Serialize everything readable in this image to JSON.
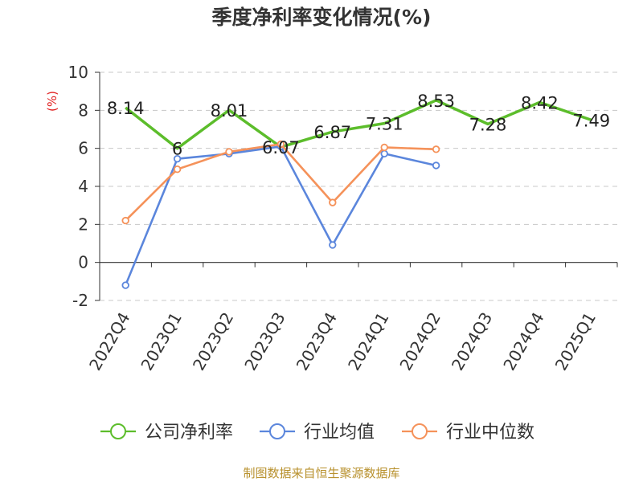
{
  "chart_data": {
    "type": "line",
    "title": "季度净利率变化情况(%)",
    "ylabel": "(%)",
    "ylim": [
      -2,
      10
    ],
    "yticks": [
      -2,
      0,
      2,
      4,
      6,
      8,
      10
    ],
    "grid": true,
    "categories": [
      "2022Q4",
      "2023Q1",
      "2023Q2",
      "2023Q3",
      "2023Q4",
      "2024Q1",
      "2024Q2",
      "2024Q3",
      "2024Q4",
      "2025Q1"
    ],
    "series": [
      {
        "name": "公司净利率",
        "color": "#5cbd2b",
        "values": [
          8.14,
          6,
          8.01,
          6.07,
          6.87,
          7.31,
          8.53,
          7.28,
          8.42,
          7.49
        ],
        "labels": [
          "8.14",
          "6",
          "8.01",
          "6.07",
          "6.87",
          "7.31",
          "8.53",
          "7.28",
          "8.42",
          "7.49"
        ]
      },
      {
        "name": "行业均值",
        "color": "#5b86dc",
        "values": [
          -1.2,
          5.45,
          5.72,
          6.1,
          0.92,
          5.72,
          5.1,
          null,
          null,
          null
        ]
      },
      {
        "name": "行业中位数",
        "color": "#f5925a",
        "values": [
          2.2,
          4.9,
          5.82,
          6.22,
          3.15,
          6.05,
          5.95,
          null,
          null,
          null
        ]
      }
    ],
    "legend_position": "bottom"
  },
  "footer": {
    "source": "制图数据来自恒生聚源数据库"
  }
}
